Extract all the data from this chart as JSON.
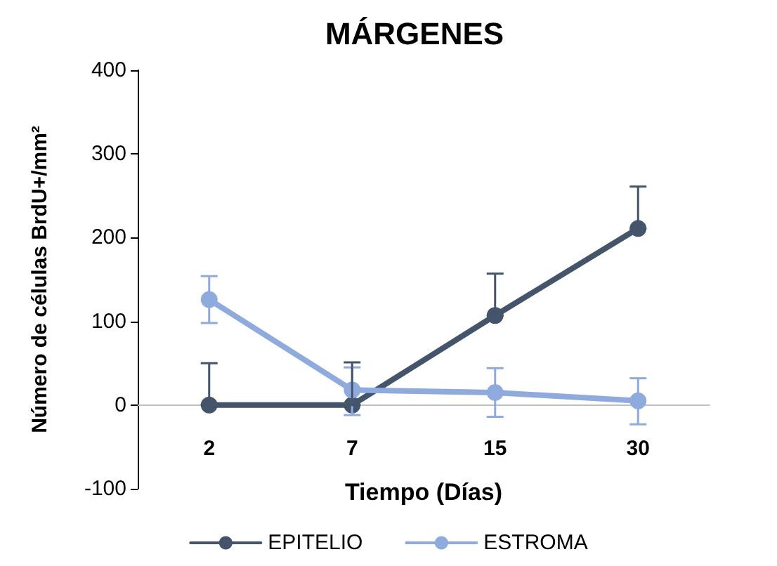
{
  "chart_data": {
    "type": "line",
    "title": "MÁRGENES",
    "xlabel": "Tiempo (Días)",
    "ylabel": "Número de células BrdU+/mm²",
    "categories": [
      "2",
      "7",
      "15",
      "30"
    ],
    "series": [
      {
        "name": "EPITELIO",
        "color": "#44546a",
        "values": [
          0,
          0,
          107,
          211
        ],
        "errors": [
          [
            0,
            50
          ],
          [
            0,
            51
          ],
          [
            107,
            157
          ],
          [
            211,
            261
          ]
        ]
      },
      {
        "name": "ESTROMA",
        "color": "#8faadc",
        "values": [
          126,
          18,
          15,
          5
        ],
        "errors": [
          [
            98,
            154
          ],
          [
            -12,
            45
          ],
          [
            -14,
            44
          ],
          [
            -23,
            32
          ]
        ]
      }
    ],
    "ylim": [
      -100,
      400
    ],
    "yticks": [
      -100,
      0,
      100,
      200,
      300,
      400
    ],
    "grid": false,
    "legend": "bottom",
    "marker": "circle",
    "line_style": "solid"
  }
}
